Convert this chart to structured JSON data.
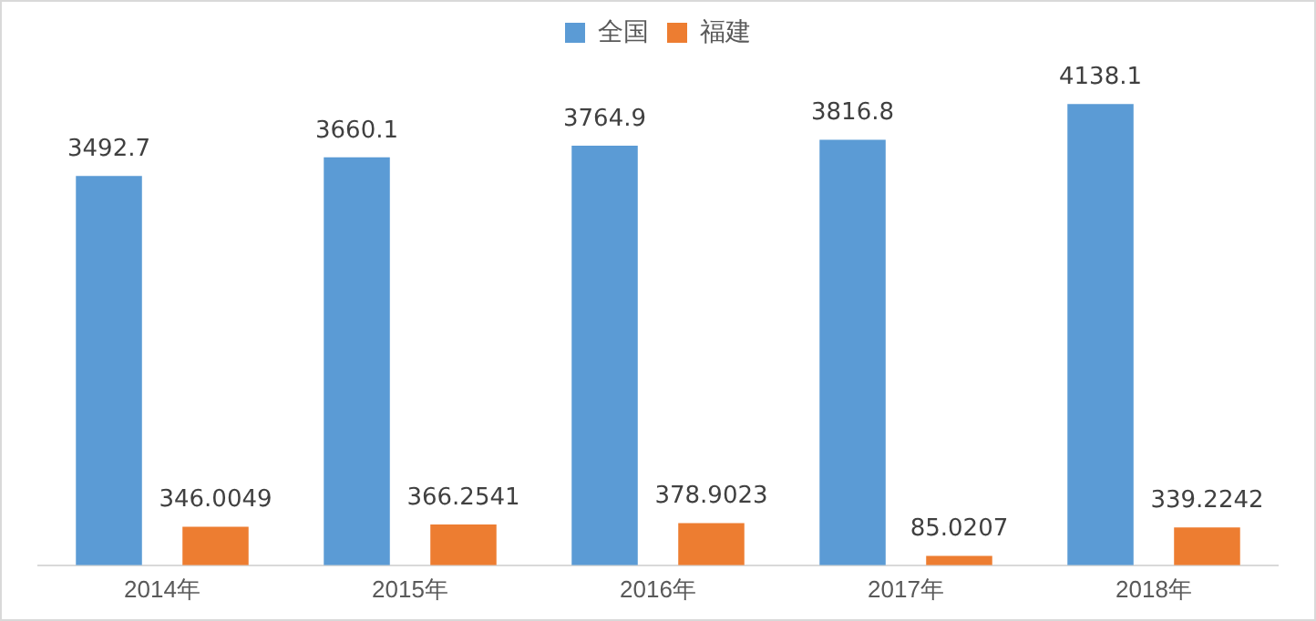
{
  "chart_data": {
    "type": "bar",
    "categories": [
      "2014年",
      "2015年",
      "2016年",
      "2017年",
      "2018年"
    ],
    "series": [
      {
        "name": "全国",
        "color": "#5b9bd5",
        "values": [
          3492.7,
          3660.1,
          3764.9,
          3816.8,
          4138.1
        ]
      },
      {
        "name": "福建",
        "color": "#ed7d31",
        "values": [
          346.0049,
          366.2541,
          378.9023,
          85.0207,
          339.2242
        ]
      }
    ],
    "data_labels": true,
    "legend": "top",
    "grid": false,
    "tick_labels": "x"
  }
}
